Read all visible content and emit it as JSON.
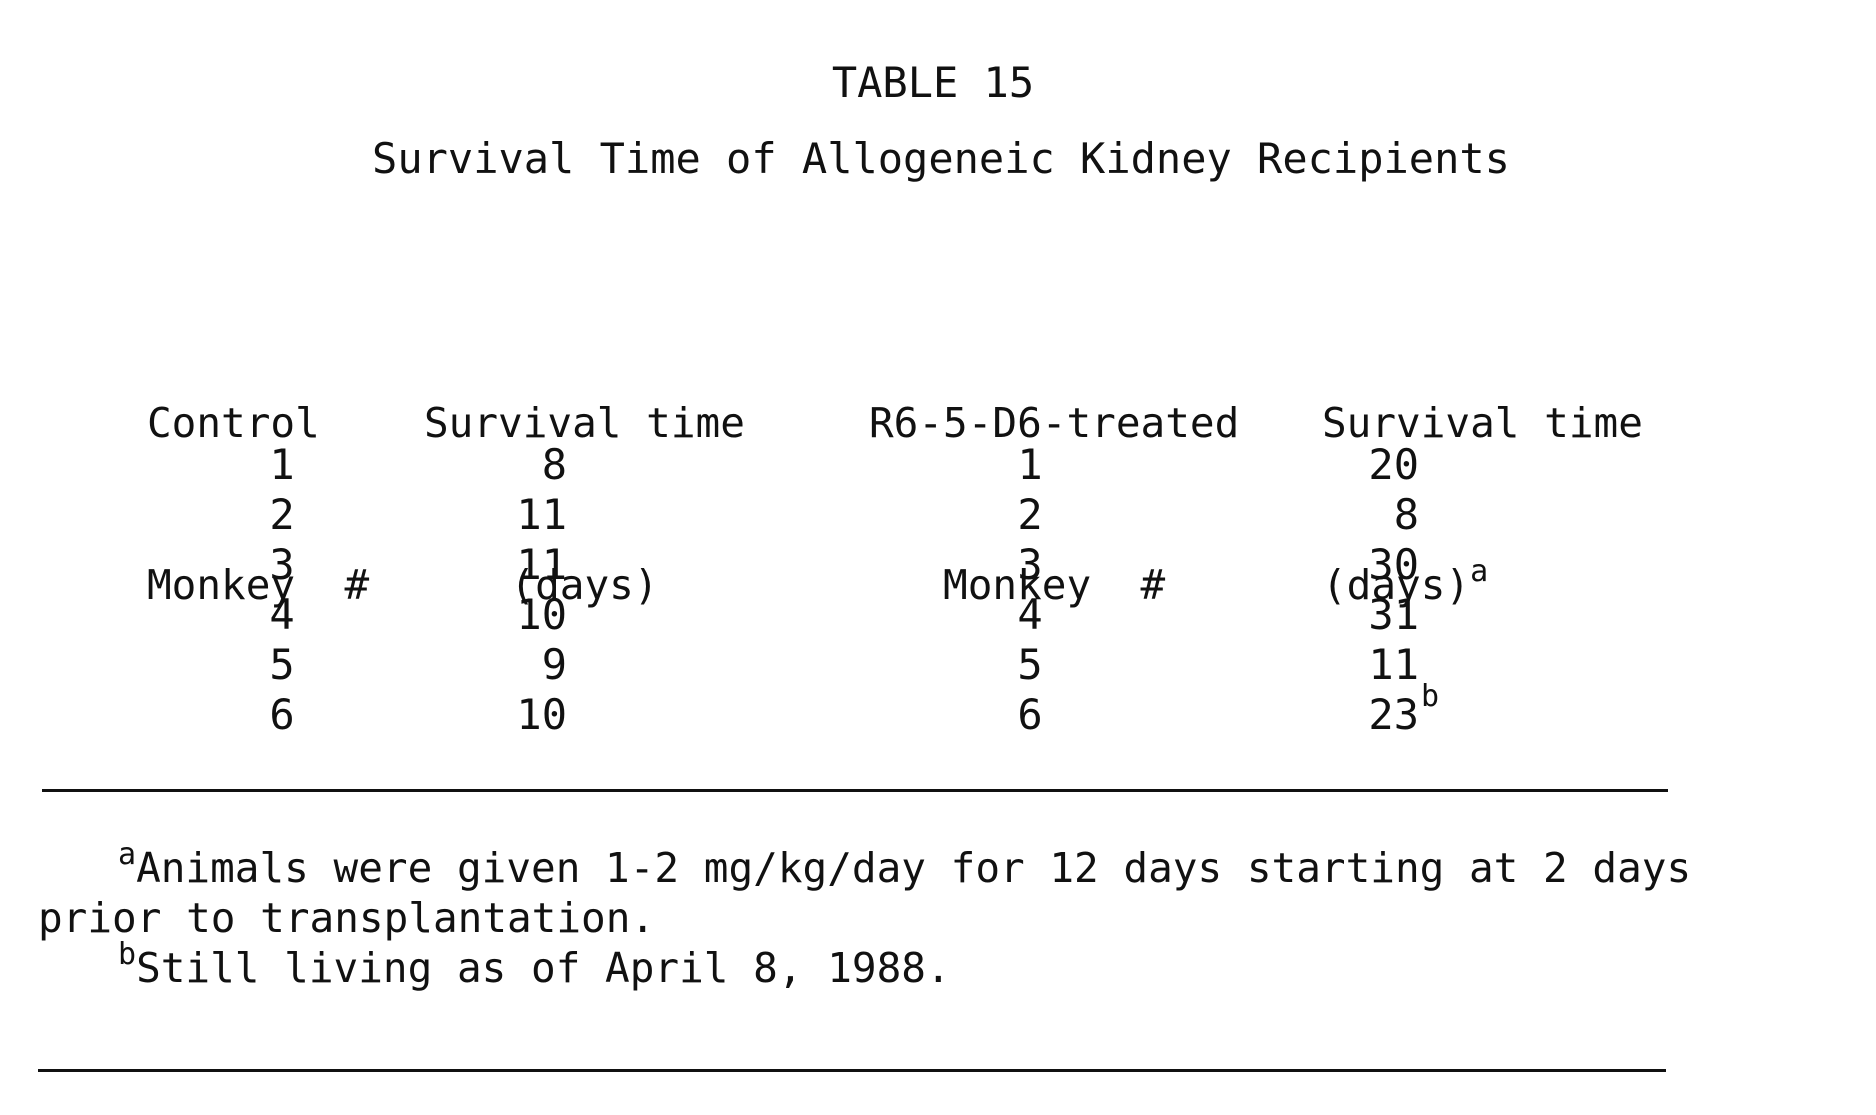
{
  "table": {
    "label": "TABLE 15",
    "title": "Survival Time of Allogeneic Kidney Recipients",
    "headers": {
      "control_monkey": [
        "Control",
        "Monkey  #"
      ],
      "control_survival": [
        "Survival time",
        "(days)"
      ],
      "treated_monkey": [
        "R6-5-D6-treated",
        "Monkey  #"
      ],
      "treated_survival": [
        "Survival time",
        "(days)"
      ],
      "treated_survival_marker": "a"
    },
    "rows": [
      {
        "control_id": "1",
        "control_days": "8",
        "treated_id": "1",
        "treated_days": "20",
        "marker": ""
      },
      {
        "control_id": "2",
        "control_days": "11",
        "treated_id": "2",
        "treated_days": "8",
        "marker": ""
      },
      {
        "control_id": "3",
        "control_days": "11",
        "treated_id": "3",
        "treated_days": "30",
        "marker": ""
      },
      {
        "control_id": "4",
        "control_days": "10",
        "treated_id": "4",
        "treated_days": "31",
        "marker": ""
      },
      {
        "control_id": "5",
        "control_days": "9",
        "treated_id": "5",
        "treated_days": "11",
        "marker": ""
      },
      {
        "control_id": "6",
        "control_days": "10",
        "treated_id": "6",
        "treated_days": "23",
        "marker": "b"
      }
    ]
  },
  "footnotes": {
    "a_marker": "a",
    "a_line1": "Animals were given 1-2 mg/kg/day for 12 days starting at 2 days",
    "a_line2": "prior to transplantation.",
    "b_marker": "b",
    "b_line1": "Still living as of April 8, 1988."
  }
}
